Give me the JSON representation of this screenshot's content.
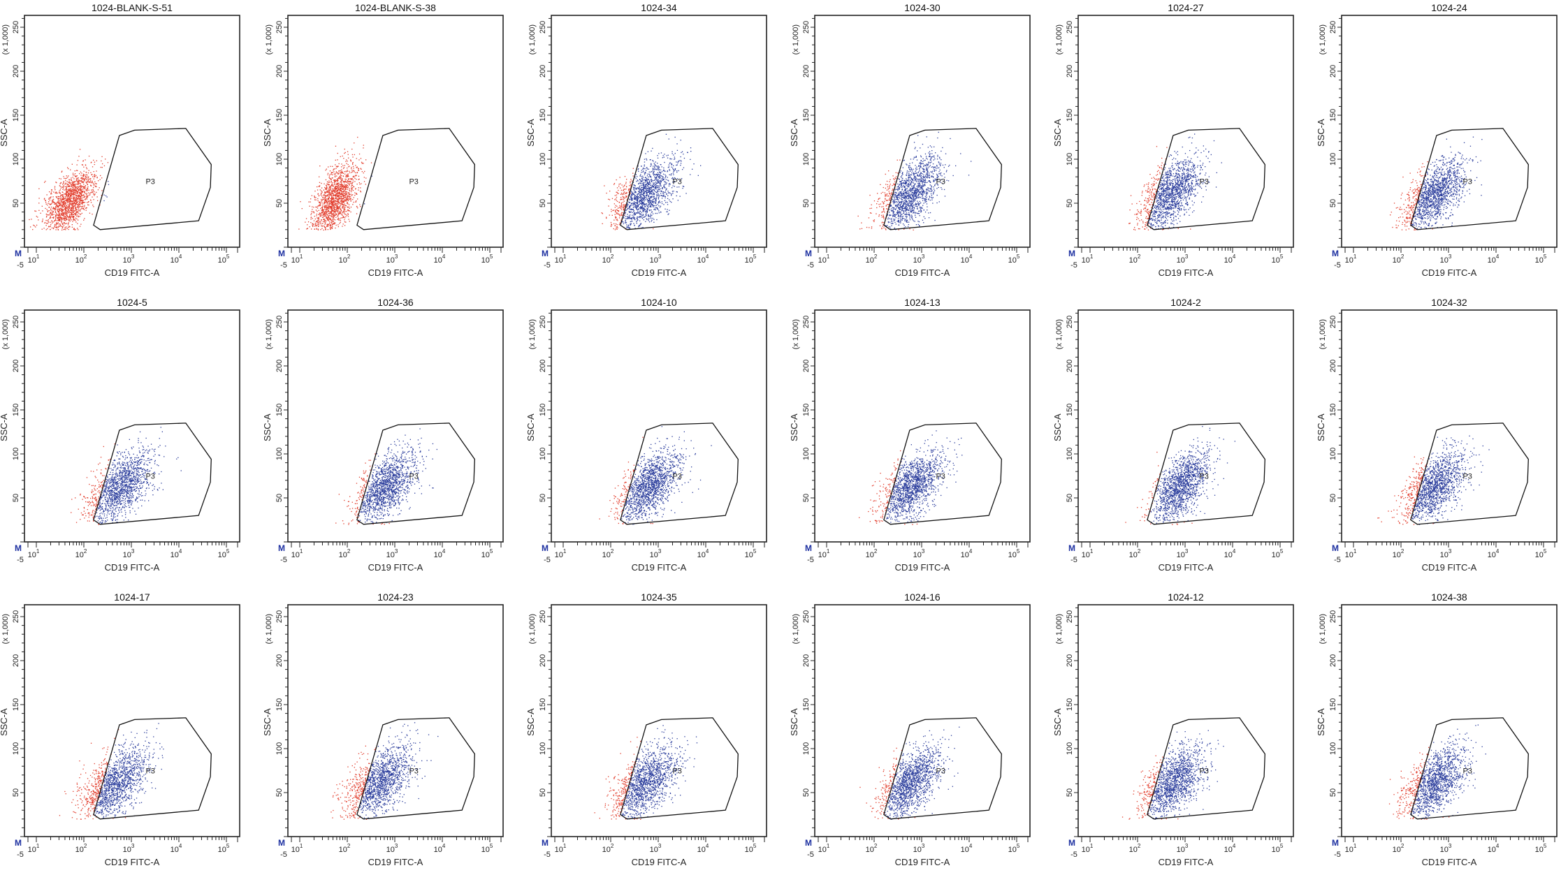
{
  "axes": {
    "xlabel": "CD19 FITC-A",
    "ylabel": "SSC-A",
    "y_multiplier_label": "(x 1,000)",
    "x_scale": "log (biexponential)",
    "x_low_label": "-5",
    "x_tick_base": "10",
    "x_tick_exponents": [
      "1",
      "2",
      "3",
      "4",
      "5"
    ],
    "y_scale": "linear",
    "ylim": [
      0,
      262.144
    ],
    "y_ticks": [
      "50",
      "100",
      "150",
      "200",
      "250"
    ],
    "corner_marker": "M",
    "grid": false
  },
  "colors": {
    "outside_gate": "#e23b2a",
    "inside_gate": "#2a3c9c",
    "gate_line": "#111111",
    "marker": "#1c2fa0"
  },
  "gate": {
    "label": "P3",
    "vertices": [
      [
        560,
        127
      ],
      [
        1170,
        133
      ],
      [
        14000,
        135
      ],
      [
        48000,
        94
      ],
      [
        46000,
        68
      ],
      [
        26000,
        30
      ],
      [
        220,
        20
      ],
      [
        160,
        25
      ]
    ]
  },
  "chart_data": [
    {
      "type": "scatter",
      "title": "1024-BLANK-S-51",
      "cloud": {
        "x_center": 50,
        "x_spread_decades": 0.28,
        "y_center": 52,
        "y_sd": 20
      }
    },
    {
      "type": "scatter",
      "title": "1024-BLANK-S-38",
      "cloud": {
        "x_center": 55,
        "x_spread_decades": 0.25,
        "y_center": 55,
        "y_sd": 22
      }
    },
    {
      "type": "scatter",
      "title": "1024-34",
      "cloud": {
        "x_center": 520,
        "x_spread_decades": 0.34,
        "y_center": 60,
        "y_sd": 22
      }
    },
    {
      "type": "scatter",
      "title": "1024-30",
      "cloud": {
        "x_center": 560,
        "x_spread_decades": 0.33,
        "y_center": 62,
        "y_sd": 22
      }
    },
    {
      "type": "scatter",
      "title": "1024-27",
      "cloud": {
        "x_center": 480,
        "x_spread_decades": 0.32,
        "y_center": 60,
        "y_sd": 22
      }
    },
    {
      "type": "scatter",
      "title": "1024-24",
      "cloud": {
        "x_center": 500,
        "x_spread_decades": 0.33,
        "y_center": 60,
        "y_sd": 22
      }
    },
    {
      "type": "scatter",
      "title": "1024-5",
      "cloud": {
        "x_center": 560,
        "x_spread_decades": 0.34,
        "y_center": 62,
        "y_sd": 22
      }
    },
    {
      "type": "scatter",
      "title": "1024-36",
      "cloud": {
        "x_center": 620,
        "x_spread_decades": 0.32,
        "y_center": 63,
        "y_sd": 22
      }
    },
    {
      "type": "scatter",
      "title": "1024-10",
      "cloud": {
        "x_center": 650,
        "x_spread_decades": 0.32,
        "y_center": 64,
        "y_sd": 22
      }
    },
    {
      "type": "scatter",
      "title": "1024-13",
      "cloud": {
        "x_center": 600,
        "x_spread_decades": 0.32,
        "y_center": 62,
        "y_sd": 22
      }
    },
    {
      "type": "scatter",
      "title": "1024-2",
      "cloud": {
        "x_center": 800,
        "x_spread_decades": 0.3,
        "y_center": 64,
        "y_sd": 22
      }
    },
    {
      "type": "scatter",
      "title": "1024-32",
      "cloud": {
        "x_center": 480,
        "x_spread_decades": 0.34,
        "y_center": 62,
        "y_sd": 22
      }
    },
    {
      "type": "scatter",
      "title": "1024-17",
      "cloud": {
        "x_center": 420,
        "x_spread_decades": 0.36,
        "y_center": 60,
        "y_sd": 22
      }
    },
    {
      "type": "scatter",
      "title": "1024-23",
      "cloud": {
        "x_center": 460,
        "x_spread_decades": 0.35,
        "y_center": 62,
        "y_sd": 22
      }
    },
    {
      "type": "scatter",
      "title": "1024-35",
      "cloud": {
        "x_center": 520,
        "x_spread_decades": 0.35,
        "y_center": 62,
        "y_sd": 22
      }
    },
    {
      "type": "scatter",
      "title": "1024-16",
      "cloud": {
        "x_center": 580,
        "x_spread_decades": 0.32,
        "y_center": 62,
        "y_sd": 22
      }
    },
    {
      "type": "scatter",
      "title": "1024-12",
      "cloud": {
        "x_center": 560,
        "x_spread_decades": 0.33,
        "y_center": 62,
        "y_sd": 22
      }
    },
    {
      "type": "scatter",
      "title": "1024-38",
      "cloud": {
        "x_center": 500,
        "x_spread_decades": 0.34,
        "y_center": 62,
        "y_sd": 22
      }
    }
  ]
}
